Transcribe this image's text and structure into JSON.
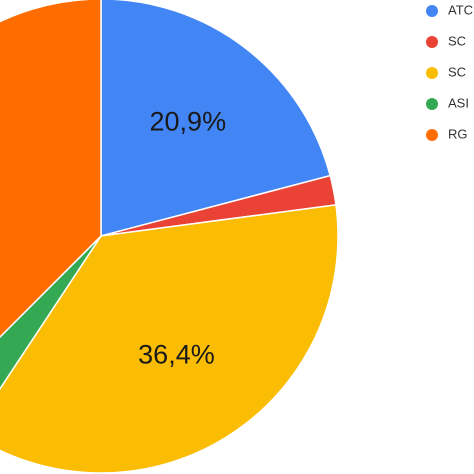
{
  "chart_data": {
    "type": "pie",
    "slices": [
      {
        "name": "ATC",
        "value": 20.9,
        "color": "#4285f4",
        "label": "20,9%"
      },
      {
        "name": "SC",
        "value": 2.0,
        "color": "#ea4335",
        "label": ""
      },
      {
        "name": "SC",
        "value": 36.4,
        "color": "#fbbc04",
        "label": "36,4%"
      },
      {
        "name": "ASI",
        "value": 3.2,
        "color": "#34a853",
        "label": ""
      },
      {
        "name": "RG",
        "value": 37.5,
        "color": "#ff6d01",
        "label": ""
      }
    ],
    "start_angle_deg": 0,
    "direction": "clockwise",
    "legend_position": "right",
    "title": ""
  }
}
